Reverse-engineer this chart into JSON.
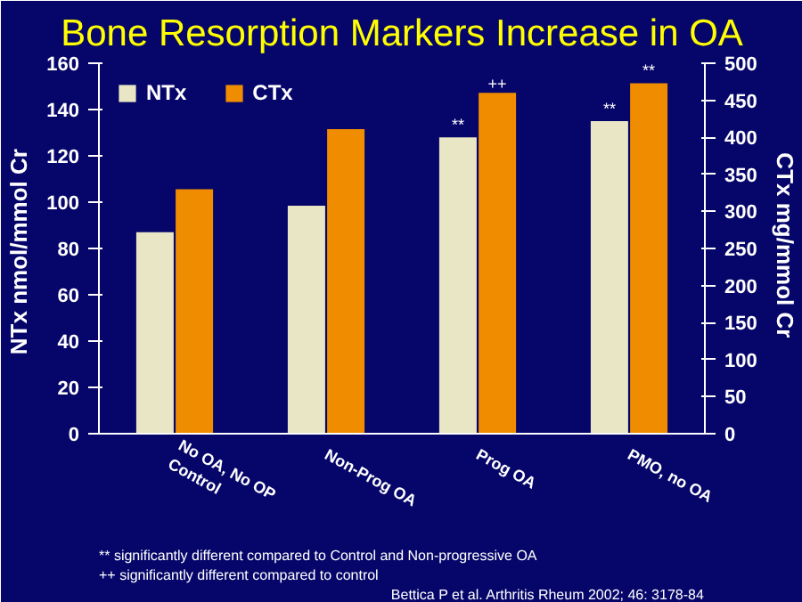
{
  "chart_data": {
    "type": "bar",
    "title": "Bone Resorption Markers Increase in OA",
    "categories": [
      "No OA, No OP\nControl",
      "Non-Prog OA",
      "Prog OA",
      "PMO, no OA"
    ],
    "series": [
      {
        "name": "NTx",
        "color": "#e8e6c4",
        "values": [
          87,
          98.5,
          128,
          135
        ],
        "value_labels": [
          null,
          null,
          "**",
          "**"
        ]
      },
      {
        "name": "CTx",
        "color": "#f08c00",
        "values": [
          330,
          411,
          460,
          473
        ],
        "value_labels": [
          null,
          null,
          "++",
          "**"
        ],
        "axis": "y2"
      }
    ],
    "ylabel": "NTx  nmol/mmol Cr",
    "y2label": "CTx  mg/mmol Cr",
    "ylim": [
      0,
      160
    ],
    "yticks": [
      0,
      20,
      40,
      60,
      80,
      100,
      120,
      140,
      160
    ],
    "y2lim": [
      0,
      500
    ],
    "y2ticks": [
      0,
      50,
      100,
      150,
      200,
      250,
      300,
      350,
      400,
      450,
      500
    ],
    "legend": "top",
    "grid": false,
    "annotations": [
      "** significantly different compared to Control and Non-progressive OA",
      "++ significantly different compared to control",
      "Bettica P et al. Arthritis Rheum 2002; 46: 3178-84"
    ]
  }
}
